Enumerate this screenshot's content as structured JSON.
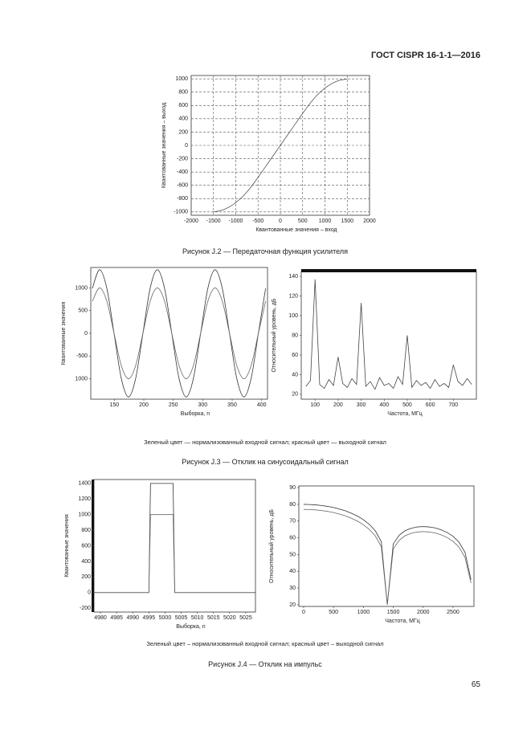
{
  "header": "ГОСТ CISPR 16-1-1—2016",
  "chart_data": [
    {
      "type": "line",
      "x_label": "Квантованные значения – вход",
      "y_label": "Квантованные значения – выход",
      "x": [
        -1500,
        -1250,
        -1000,
        -750,
        -500,
        -250,
        0,
        250,
        500,
        750,
        1000,
        1250,
        1500
      ],
      "series": [
        {
          "color": "#555555",
          "values": [
            -1000,
            -960,
            -860,
            -700,
            -480,
            -240,
            0,
            240,
            480,
            700,
            860,
            960,
            1000
          ]
        }
      ],
      "xlim": [
        -2000,
        2000
      ],
      "ylim": [
        -1050,
        1050
      ],
      "xticks": [
        -2000,
        -1500,
        -1000,
        -500,
        0,
        500,
        1000,
        1500,
        2000
      ],
      "yticks": [
        -1000,
        -800,
        -600,
        -400,
        -200,
        0,
        200,
        400,
        600,
        800,
        1000
      ],
      "grid": true
    },
    {
      "type": "line",
      "x_label": "Выборка, n",
      "y_label": "Квантованные значения",
      "x": [
        112.75,
        125,
        137.25,
        149.5,
        161.75,
        174,
        186.25,
        198.5,
        210.75,
        223,
        235.25,
        247.5,
        259.75,
        272,
        284.25,
        296.5,
        308.75,
        321,
        333.25,
        345.5,
        357.75,
        370,
        382.25,
        394.5,
        406.75
      ],
      "series": [
        {
          "color": "#333333",
          "values": [
            990,
            1400,
            990,
            0,
            -990,
            -1400,
            -990,
            0,
            990,
            1400,
            990,
            0,
            -990,
            -1400,
            -990,
            0,
            990,
            1400,
            990,
            0,
            -990,
            -1400,
            -990,
            0,
            990
          ]
        },
        {
          "color": "#666666",
          "values": [
            707,
            1000,
            707,
            0,
            -707,
            -1000,
            -707,
            0,
            707,
            1000,
            707,
            0,
            -707,
            -1000,
            -707,
            0,
            707,
            1000,
            707,
            0,
            -707,
            -1000,
            -707,
            0,
            707
          ]
        }
      ],
      "xlim": [
        110,
        410
      ],
      "ylim": [
        -1450,
        1450
      ],
      "xticks": [
        150,
        200,
        250,
        300,
        350,
        400
      ],
      "yticks": [
        1000,
        500,
        0,
        -500,
        {
          "value": -1000,
          "label": "1000"
        }
      ],
      "grid": false
    },
    {
      "type": "line",
      "x_label": "Частота, МГц",
      "y_label": "Относительный уровень, дБ",
      "x": [
        60,
        80,
        100,
        120,
        140,
        160,
        180,
        200,
        220,
        240,
        260,
        280,
        300,
        320,
        340,
        360,
        380,
        400,
        420,
        440,
        460,
        480,
        500,
        520,
        540,
        560,
        580,
        600,
        620,
        640,
        660,
        680,
        700,
        720,
        740,
        760,
        780
      ],
      "series": [
        {
          "color": "#444444",
          "values": [
            28,
            34,
            137,
            30,
            26,
            35,
            29,
            58,
            31,
            27,
            36,
            30,
            113,
            28,
            33,
            25,
            37,
            29,
            31,
            26,
            38,
            30,
            80,
            27,
            34,
            29,
            32,
            26,
            35,
            28,
            31,
            27,
            50,
            33,
            29,
            36,
            30
          ]
        }
      ],
      "xlim": [
        40,
        800
      ],
      "ylim": [
        15,
        145
      ],
      "xticks": [
        100,
        200,
        300,
        400,
        500,
        600,
        700
      ],
      "yticks": [
        20,
        40,
        60,
        80,
        100,
        120,
        140
      ],
      "grid": false
    },
    {
      "type": "line",
      "x_label": "Выборка, n",
      "y_label": "Квантованные значения",
      "x": [
        4978,
        4995,
        4995.5,
        5002.5,
        5003,
        5028
      ],
      "series": [
        {
          "color": "#333333",
          "values": [
            0,
            0,
            1400,
            1400,
            0,
            0
          ]
        },
        {
          "color": "#666666",
          "values": [
            0,
            0,
            1000,
            1000,
            0,
            0
          ]
        }
      ],
      "xlim": [
        4978,
        5028
      ],
      "ylim": [
        -250,
        1450
      ],
      "xticks": [
        4980,
        4985,
        4990,
        4995,
        5000,
        5005,
        5010,
        5015,
        5020,
        5025
      ],
      "yticks": [
        -200,
        0,
        200,
        400,
        600,
        800,
        1000,
        1200,
        1400
      ],
      "grid": false
    },
    {
      "type": "line",
      "x_label": "Частота, МГц",
      "y_label": "Относительный уровень, дБ",
      "x": [
        0,
        100,
        200,
        300,
        400,
        500,
        600,
        700,
        800,
        900,
        1000,
        1100,
        1200,
        1300,
        1400,
        1500,
        1600,
        1700,
        1800,
        1900,
        2000,
        2100,
        2200,
        2300,
        2400,
        2500,
        2600,
        2700,
        2800
      ],
      "series": [
        {
          "color": "#333333",
          "values": [
            80,
            79.9,
            79.7,
            79.3,
            78.8,
            78.1,
            77.2,
            76.1,
            74.7,
            73,
            70.8,
            68,
            64.1,
            57.7,
            20,
            56.4,
            61.6,
            64.3,
            65.7,
            66.5,
            66.7,
            66.5,
            65.9,
            64.8,
            63.2,
            60.9,
            57.4,
            51.3,
            35
          ]
        },
        {
          "color": "#666666",
          "values": [
            77,
            76.9,
            76.7,
            76.3,
            75.8,
            75.1,
            74.2,
            73.1,
            71.7,
            70,
            67.8,
            65,
            61.1,
            54.7,
            20,
            53.4,
            58.6,
            61.3,
            62.7,
            63.5,
            63.7,
            63.5,
            62.9,
            61.8,
            60.2,
            57.9,
            54.4,
            48.3,
            33
          ]
        }
      ],
      "xlim": [
        -80,
        2850
      ],
      "ylim": [
        19,
        91
      ],
      "xticks": [
        0,
        500,
        1000,
        1500,
        2000,
        2500
      ],
      "yticks": [
        20,
        30,
        40,
        50,
        60,
        70,
        80,
        90
      ],
      "grid": false
    }
  ],
  "notes": [
    "Зеленый цвет — нормализованный входной сигнал; красный цвет — выходной сигнал",
    "Зеленый цвет – нормализованный входной сигнал; красный цвет – выходной сигнал"
  ],
  "captions": [
    "Рисунок J.2 — Передаточная функция усилителя",
    "Рисунок J.3 — Отклик на синусоидальный сигнал",
    "Рисунок J.4 — Отклик на импульс"
  ],
  "page_number": "65"
}
